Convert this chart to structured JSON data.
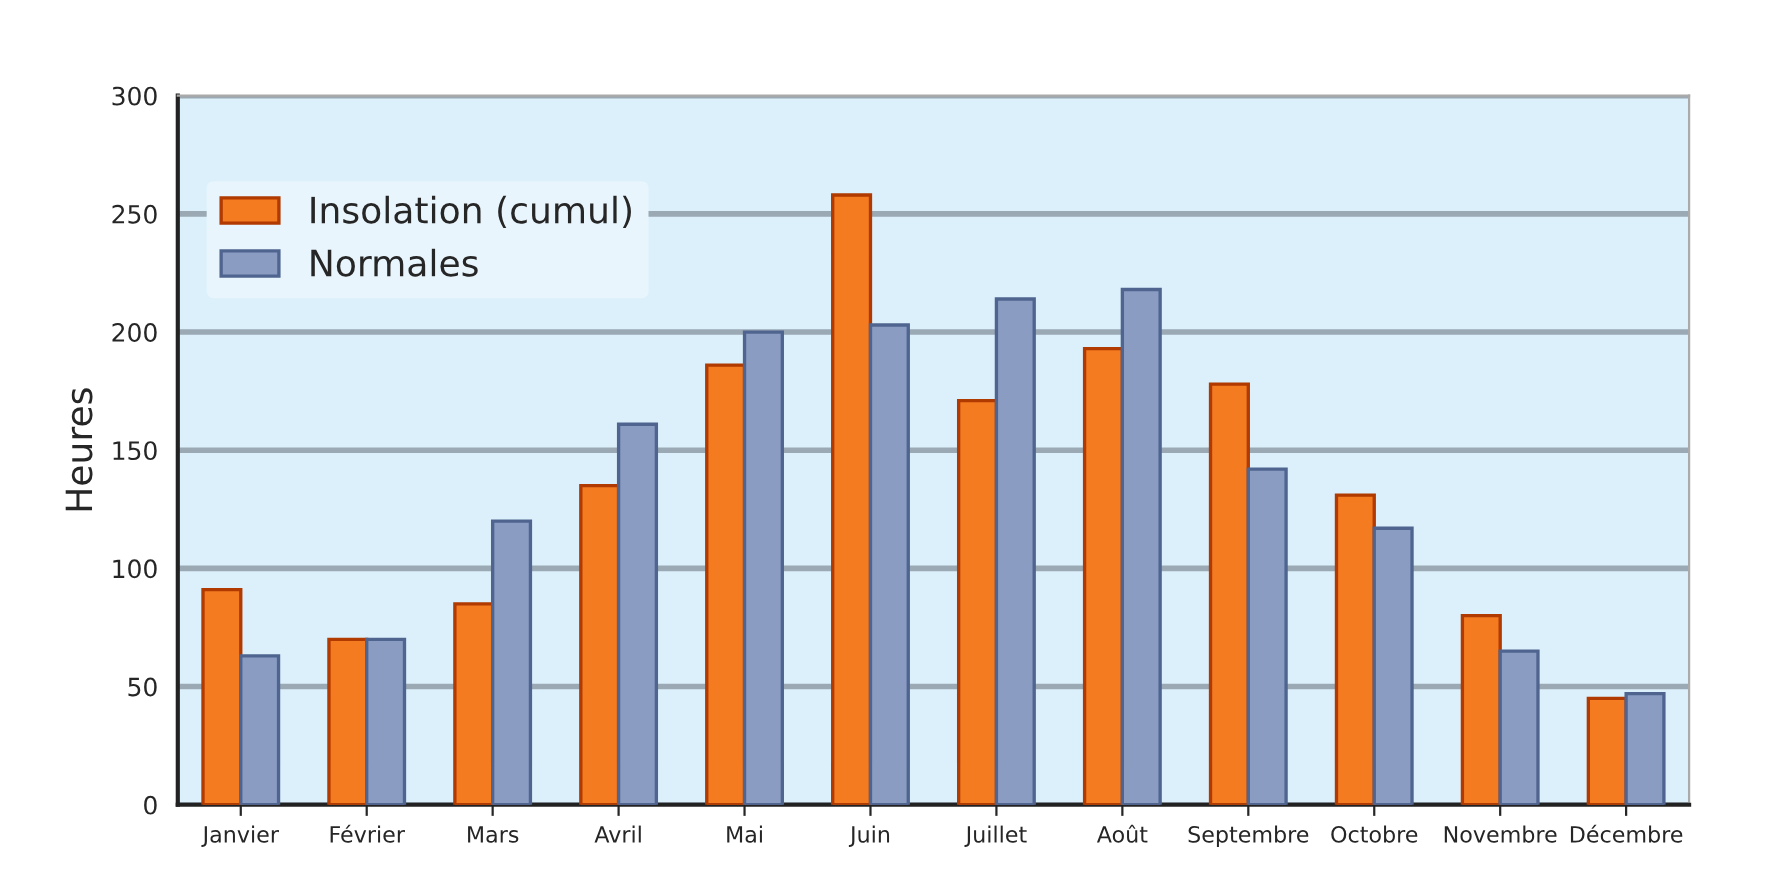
{
  "chart_data": {
    "type": "bar",
    "ylabel": "Heures",
    "categories": [
      "Janvier",
      "Février",
      "Mars",
      "Avril",
      "Mai",
      "Juin",
      "Juillet",
      "Août",
      "Septembre",
      "Octobre",
      "Novembre",
      "Décembre"
    ],
    "series": [
      {
        "name": "Insolation (cumul)",
        "color": "#f47b20",
        "values": [
          91,
          70,
          85,
          135,
          186,
          258,
          171,
          193,
          178,
          131,
          80,
          45
        ]
      },
      {
        "name": "Normales",
        "color": "#8a9cc2",
        "values": [
          63,
          70,
          120,
          161,
          200,
          203,
          214,
          218,
          142,
          117,
          65,
          47
        ]
      }
    ],
    "ylim": [
      0,
      300
    ],
    "yticks": [
      0,
      50,
      100,
      150,
      200,
      250,
      300
    ],
    "grid": "y",
    "legend": "top left"
  }
}
